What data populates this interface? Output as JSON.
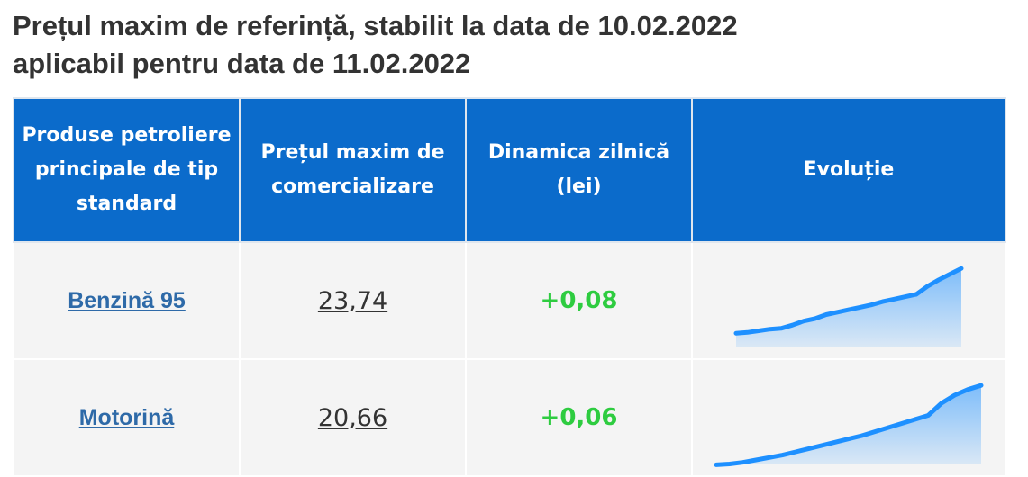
{
  "header": {
    "title_line1": "Prețul maxim de referință, stabilit la data de 10.02.2022",
    "title_line2": "aplicabil pentru data de 11.02.2022"
  },
  "table": {
    "headers": [
      "Produse petroliere principale de tip standard",
      "Prețul maxim de comercializare",
      "Dinamica zilnică (lei)",
      "Evoluție"
    ],
    "rows": [
      {
        "product": "Benzină 95",
        "price": "23,74",
        "change": "+0,08",
        "evolution": [
          22,
          23,
          25,
          27,
          28,
          32,
          37,
          40,
          45,
          48,
          51,
          54,
          57,
          61,
          64,
          67,
          70,
          80,
          88,
          95,
          102
        ]
      },
      {
        "product": "Motorină",
        "price": "20,66",
        "change": "+0,06",
        "evolution": [
          4,
          5,
          7,
          10,
          13,
          16,
          20,
          24,
          28,
          32,
          36,
          40,
          45,
          50,
          55,
          60,
          65,
          80,
          90,
          97,
          102
        ]
      }
    ]
  }
}
